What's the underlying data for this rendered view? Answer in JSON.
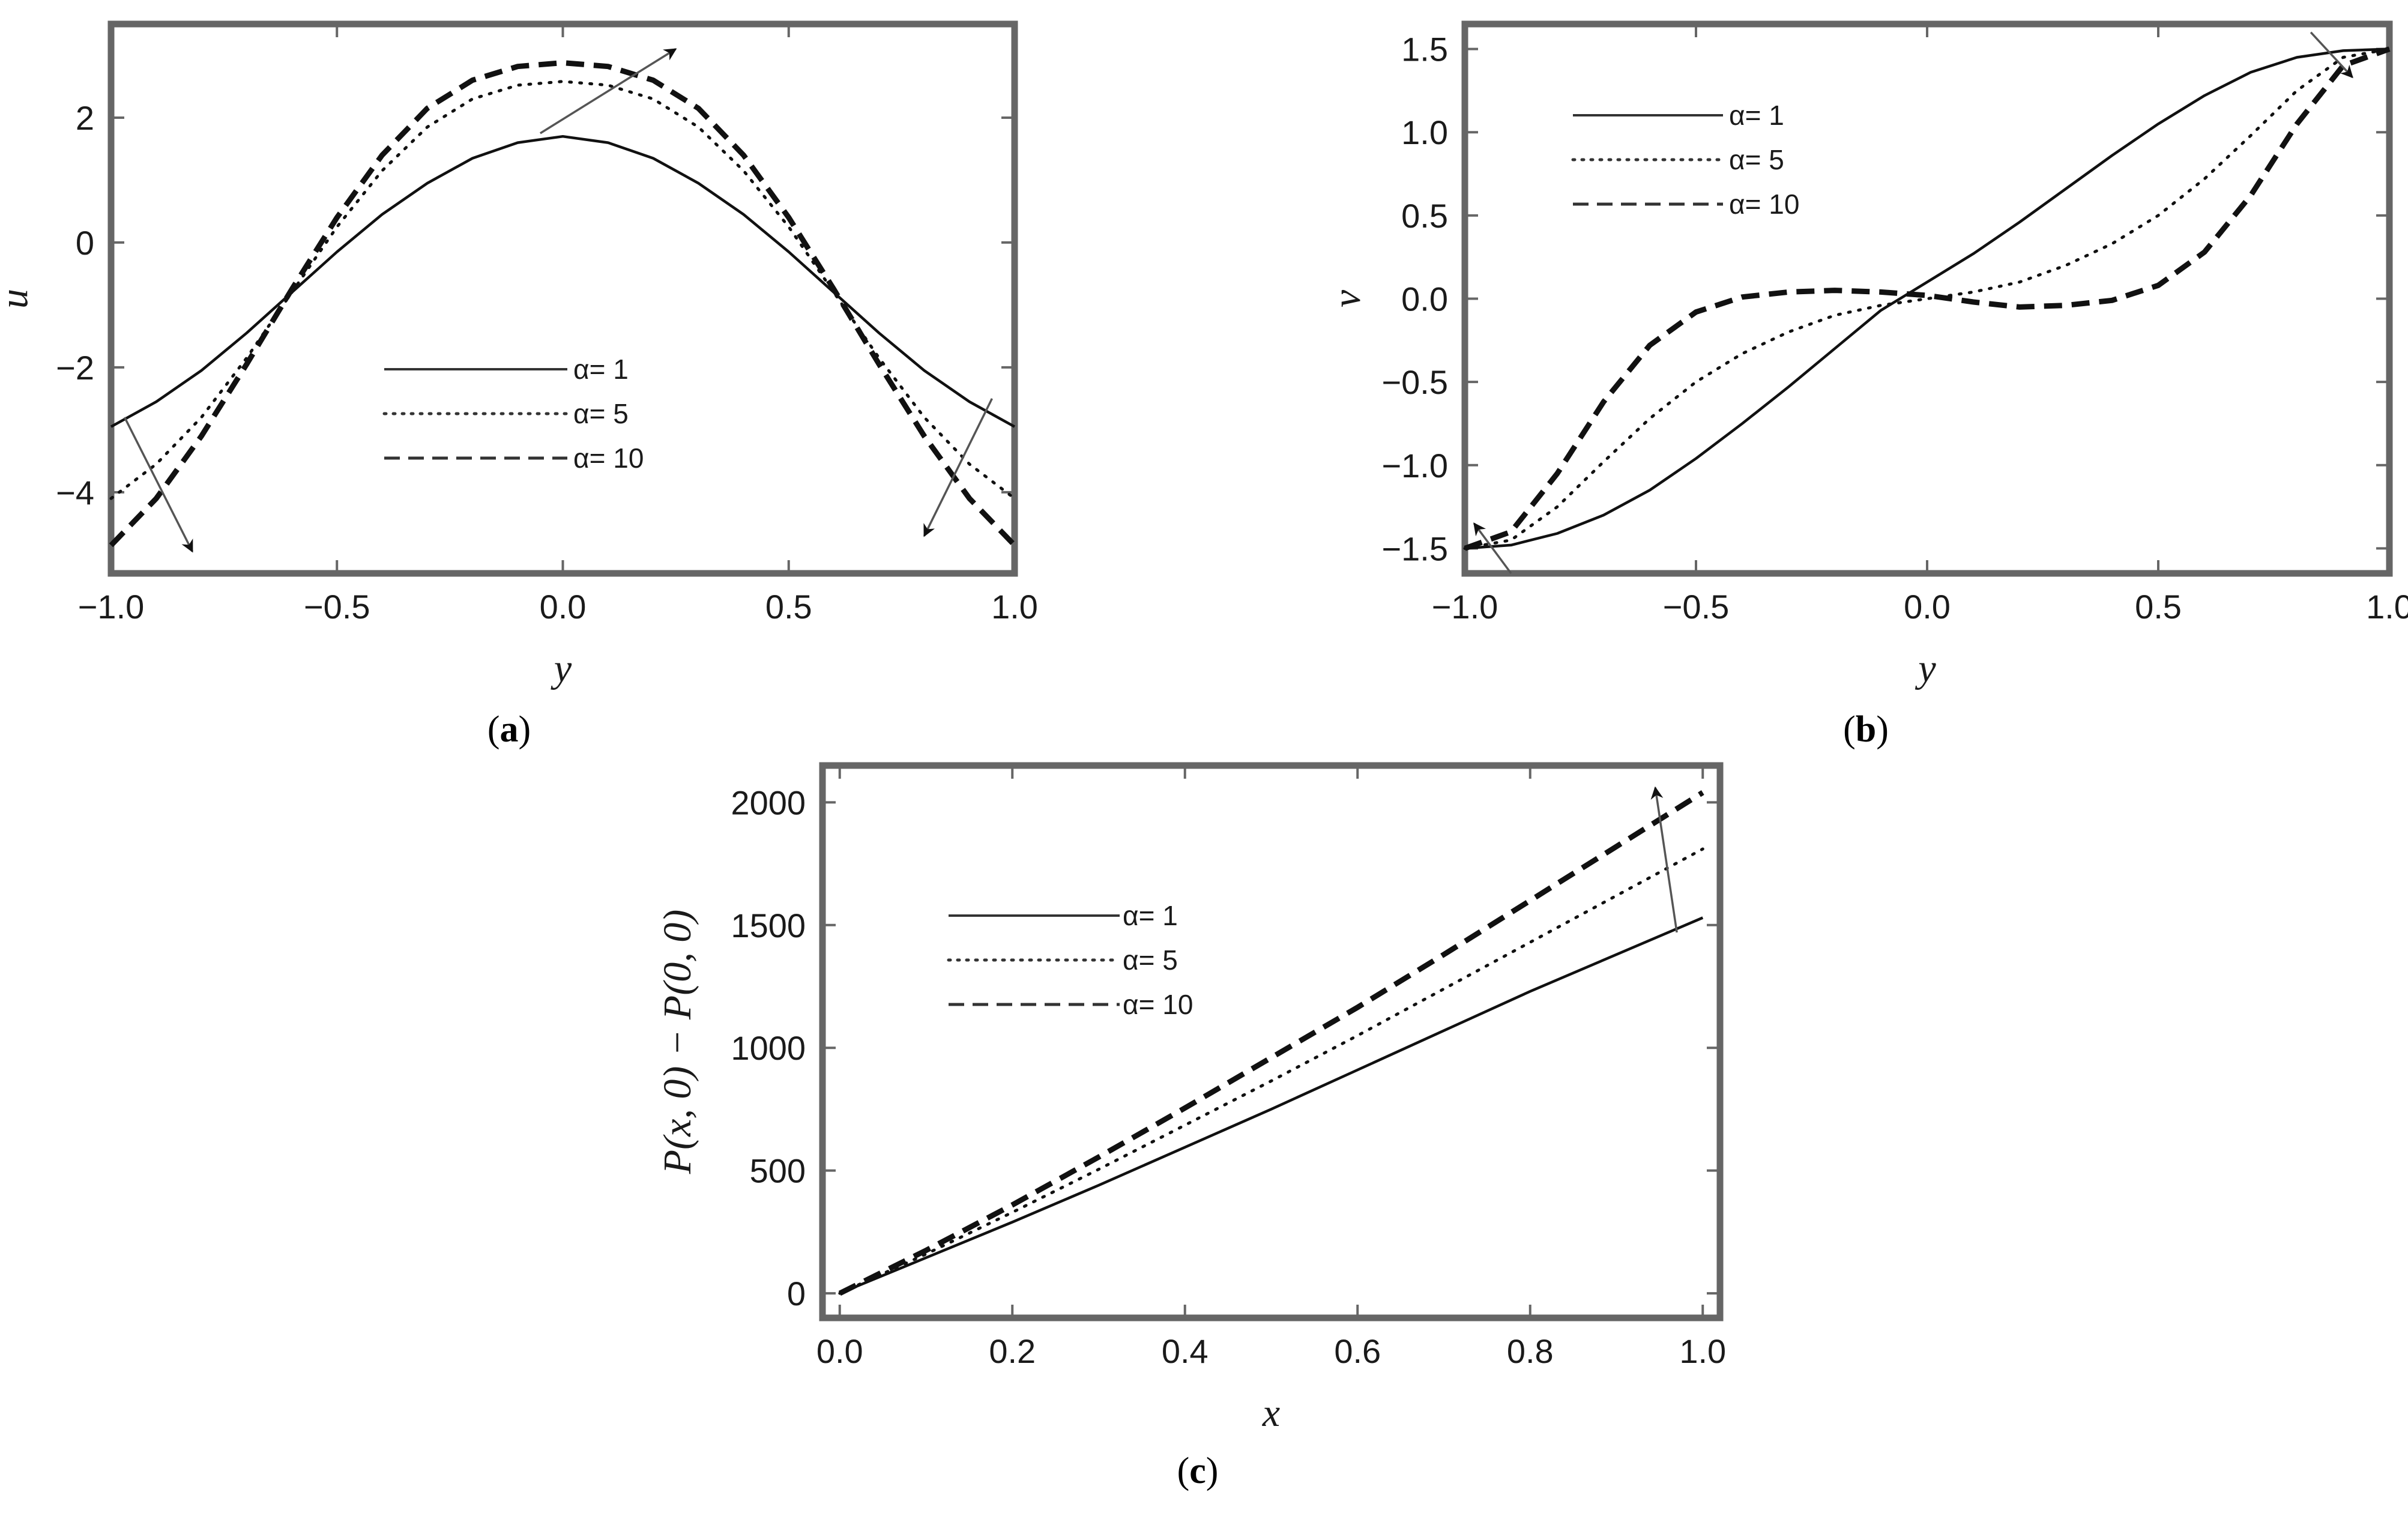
{
  "chart_data": [
    {
      "panel": "(a)",
      "panel_letter": "a",
      "type": "line",
      "xlabel": "y",
      "ylabel": "u",
      "xlim": [
        -1.0,
        1.0
      ],
      "ylim": [
        -5.3,
        3.5
      ],
      "x_ticks": [
        "-1.0",
        "-0.5",
        "0.0",
        "0.5",
        "1.0"
      ],
      "y_ticks": [
        "-4",
        "-2",
        "0",
        "2"
      ],
      "legend_position": "center",
      "series": [
        {
          "name": "α= 1",
          "style": "solid",
          "x": [
            -1.0,
            -0.9,
            -0.8,
            -0.7,
            -0.6,
            -0.5,
            -0.4,
            -0.3,
            -0.2,
            -0.1,
            0.0,
            0.1,
            0.2,
            0.3,
            0.4,
            0.5,
            0.6,
            0.7,
            0.8,
            0.9,
            1.0
          ],
          "y": [
            -2.95,
            -2.55,
            -2.05,
            -1.45,
            -0.8,
            -0.15,
            0.45,
            0.95,
            1.35,
            1.6,
            1.7,
            1.6,
            1.35,
            0.95,
            0.45,
            -0.15,
            -0.8,
            -1.45,
            -2.05,
            -2.55,
            -2.95
          ]
        },
        {
          "name": "α= 5",
          "style": "dotted",
          "x": [
            -1.0,
            -0.9,
            -0.8,
            -0.7,
            -0.6,
            -0.5,
            -0.4,
            -0.3,
            -0.2,
            -0.1,
            0.0,
            0.1,
            0.2,
            0.3,
            0.4,
            0.5,
            0.6,
            0.7,
            0.8,
            0.9,
            1.0
          ],
          "y": [
            -4.1,
            -3.55,
            -2.8,
            -1.85,
            -0.8,
            0.25,
            1.15,
            1.85,
            2.3,
            2.52,
            2.58,
            2.52,
            2.3,
            1.85,
            1.15,
            0.25,
            -0.8,
            -1.85,
            -2.8,
            -3.55,
            -4.1
          ]
        },
        {
          "name": "α= 10",
          "style": "dashed",
          "x": [
            -1.0,
            -0.9,
            -0.8,
            -0.7,
            -0.6,
            -0.5,
            -0.4,
            -0.3,
            -0.2,
            -0.1,
            0.0,
            0.1,
            0.2,
            0.3,
            0.4,
            0.5,
            0.6,
            0.7,
            0.8,
            0.9,
            1.0
          ],
          "y": [
            -4.85,
            -4.1,
            -3.1,
            -1.95,
            -0.75,
            0.4,
            1.4,
            2.15,
            2.6,
            2.82,
            2.88,
            2.82,
            2.6,
            2.15,
            1.4,
            0.4,
            -0.75,
            -1.95,
            -3.1,
            -4.1,
            -4.85
          ]
        }
      ],
      "arrows": [
        {
          "from": [
            -0.05,
            1.75
          ],
          "to": [
            0.25,
            3.1
          ]
        },
        {
          "from": [
            -0.97,
            -2.8
          ],
          "to": [
            -0.82,
            -4.95
          ]
        },
        {
          "from": [
            0.95,
            -2.5
          ],
          "to": [
            0.8,
            -4.7
          ]
        }
      ]
    },
    {
      "panel": "(b)",
      "panel_letter": "b",
      "type": "line",
      "xlabel": "y",
      "ylabel": "v",
      "xlim": [
        -1.0,
        1.0
      ],
      "ylim": [
        -1.65,
        1.65
      ],
      "x_ticks": [
        "-1.0",
        "-0.5",
        "0.0",
        "0.5",
        "1.0"
      ],
      "y_ticks": [
        "-1.5",
        "-1.0",
        "-0.5",
        "0.0",
        "0.5",
        "1.0",
        "1.5"
      ],
      "legend_position": "top-left",
      "series": [
        {
          "name": "α= 1",
          "style": "solid",
          "x": [
            -1.0,
            -0.9,
            -0.8,
            -0.7,
            -0.6,
            -0.5,
            -0.4,
            -0.3,
            -0.2,
            -0.1,
            0.0,
            0.1,
            0.2,
            0.3,
            0.4,
            0.5,
            0.6,
            0.7,
            0.8,
            0.9,
            1.0
          ],
          "y": [
            -1.5,
            -1.48,
            -1.41,
            -1.3,
            -1.15,
            -0.96,
            -0.75,
            -0.53,
            -0.3,
            -0.07,
            0.1,
            0.27,
            0.46,
            0.66,
            0.86,
            1.05,
            1.22,
            1.36,
            1.45,
            1.49,
            1.5
          ]
        },
        {
          "name": "α= 5",
          "style": "dotted",
          "x": [
            -1.0,
            -0.9,
            -0.8,
            -0.7,
            -0.6,
            -0.5,
            -0.4,
            -0.3,
            -0.2,
            -0.1,
            0.0,
            0.1,
            0.2,
            0.3,
            0.4,
            0.5,
            0.6,
            0.7,
            0.8,
            0.9,
            1.0
          ],
          "y": [
            -1.5,
            -1.45,
            -1.25,
            -0.98,
            -0.72,
            -0.5,
            -0.33,
            -0.2,
            -0.1,
            -0.04,
            0.0,
            0.04,
            0.1,
            0.2,
            0.33,
            0.5,
            0.72,
            0.98,
            1.25,
            1.45,
            1.5
          ]
        },
        {
          "name": "α= 10",
          "style": "dashed",
          "x": [
            -1.0,
            -0.9,
            -0.8,
            -0.7,
            -0.6,
            -0.5,
            -0.4,
            -0.3,
            -0.2,
            -0.1,
            0.0,
            0.1,
            0.2,
            0.3,
            0.4,
            0.5,
            0.6,
            0.7,
            0.8,
            0.9,
            1.0
          ],
          "y": [
            -1.5,
            -1.4,
            -1.05,
            -0.62,
            -0.28,
            -0.08,
            0.01,
            0.04,
            0.05,
            0.04,
            0.02,
            -0.02,
            -0.05,
            -0.04,
            -0.01,
            0.08,
            0.28,
            0.62,
            1.05,
            1.4,
            1.5
          ]
        }
      ],
      "arrows": [
        {
          "from": [
            -0.9,
            -1.65
          ],
          "to": [
            -0.98,
            -1.35
          ]
        },
        {
          "from": [
            0.83,
            1.6
          ],
          "to": [
            0.92,
            1.33
          ]
        }
      ]
    },
    {
      "panel": "(c)",
      "panel_letter": "c",
      "type": "line",
      "xlabel": "x",
      "ylabel": "P(x, 0) − P(0, 0)",
      "xlim": [
        -0.02,
        1.02
      ],
      "ylim": [
        -100,
        2150
      ],
      "x_ticks": [
        "0.0",
        "0.2",
        "0.4",
        "0.6",
        "0.8",
        "1.0"
      ],
      "y_ticks": [
        "0",
        "500",
        "1000",
        "1500",
        "2000"
      ],
      "legend_position": "top-left",
      "series": [
        {
          "name": "α= 1",
          "style": "solid",
          "x": [
            0.0,
            0.1,
            0.2,
            0.3,
            0.4,
            0.5,
            0.6,
            0.7,
            0.8,
            0.9,
            1.0
          ],
          "y": [
            0,
            145,
            290,
            440,
            595,
            750,
            910,
            1070,
            1230,
            1380,
            1530
          ]
        },
        {
          "name": "α= 5",
          "style": "dotted",
          "x": [
            0.0,
            0.1,
            0.2,
            0.3,
            0.4,
            0.5,
            0.6,
            0.7,
            0.8,
            0.9,
            1.0
          ],
          "y": [
            0,
            160,
            330,
            505,
            685,
            865,
            1050,
            1240,
            1430,
            1620,
            1810
          ]
        },
        {
          "name": "α= 10",
          "style": "dashed",
          "x": [
            0.0,
            0.1,
            0.2,
            0.3,
            0.4,
            0.5,
            0.6,
            0.7,
            0.8,
            0.9,
            1.0
          ],
          "y": [
            0,
            175,
            360,
            555,
            755,
            960,
            1165,
            1380,
            1600,
            1820,
            2040
          ]
        }
      ],
      "arrows": [
        {
          "from": [
            0.97,
            1470
          ],
          "to": [
            0.945,
            2060
          ]
        }
      ]
    }
  ]
}
